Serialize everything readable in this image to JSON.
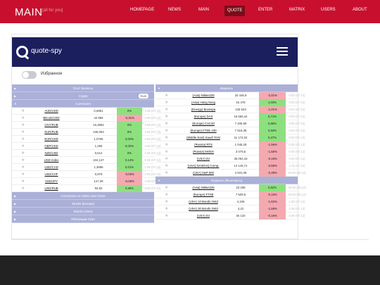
{
  "site": {
    "logo": "MAIN",
    "tagline": "[all for you]",
    "nav": [
      {
        "label": "HOMEPAGE",
        "active": false
      },
      {
        "label": "NEWS",
        "active": false
      },
      {
        "label": "MAIN",
        "active": false
      },
      {
        "label": "QUOTE",
        "active": true
      },
      {
        "label": "ENTER",
        "active": false
      },
      {
        "label": "MATRIX",
        "active": false
      },
      {
        "label": "USERS",
        "active": false
      },
      {
        "label": "ABOUT",
        "active": false
      }
    ]
  },
  "app": {
    "brand": "quote-spy",
    "favorites_label": "Избранное"
  },
  "left": {
    "sections_top": [
      {
        "title": "Спот Валюты",
        "arrow": "▶"
      },
      {
        "title": "Crypto",
        "arrow": "▶",
        "badge": "RUB"
      },
      {
        "title": "Currencies",
        "arrow": "▼"
      }
    ],
    "rows": [
      {
        "name": "AUD/USD",
        "value": "0,6951",
        "change": "0%",
        "dir": "up",
        "time": "1:06 (07.12)"
      },
      {
        "name": "Bitcoin/USD",
        "value": "42 865",
        "change": "-0,31%",
        "dir": "dn",
        "time": "1:06 (07.12)"
      },
      {
        "name": "CNY/RUB",
        "value": "16,3582",
        "change": "0%",
        "dir": "up",
        "time": "1:06 (07.12)"
      },
      {
        "name": "EUR/RUB",
        "value": "106,094",
        "change": "0%",
        "dir": "up",
        "time": "1:06 (07.12)"
      },
      {
        "name": "EUR/USD",
        "value": "1,0765",
        "change": "0,04%",
        "dir": "up",
        "time": "1:06 (07.12)"
      },
      {
        "name": "GBP/USD",
        "value": "1,256",
        "change": "0,02%",
        "dir": "up",
        "time": "1:06 (07.12)"
      },
      {
        "name": "NZD/USD",
        "value": "0,614",
        "change": "0%",
        "dir": "up",
        "time": "1:06 (07.12)"
      },
      {
        "name": "USD Index",
        "value": "104,137",
        "change": "0,14%",
        "dir": "up",
        "time": "0:06 (07.12)"
      },
      {
        "name": "USD/CAD",
        "value": "1,3595",
        "change": "0,01%",
        "dir": "up",
        "time": "1:06 (07.12)"
      },
      {
        "name": "USD/CHF",
        "value": "0,879",
        "change": "-0,05%",
        "dir": "dn",
        "time": "1:06 (07.12)"
      },
      {
        "name": "USD/JPY",
        "value": "147,29",
        "change": "-0,05%",
        "dir": "dn",
        "time": "1:06 (07.12)"
      },
      {
        "name": "USD/RUB",
        "value": "92,82",
        "change": "0,59%",
        "dir": "up",
        "time": "0:06 (07.12)"
      }
    ],
    "sections_bottom": [
      {
        "title": "Currencies ex-USDA and China",
        "arrow": "▶"
      },
      {
        "title": "Stocks (Europe)",
        "arrow": "▶"
      },
      {
        "title": "Stocks (USA)",
        "arrow": "▶"
      },
      {
        "title": "Облигации США",
        "arrow": "▶"
      }
    ]
  },
  "right": {
    "section1": {
      "title": "Индексы",
      "arrow": "▼"
    },
    "rows1": [
      {
        "name": "(Asia) Nikkei225",
        "value": "33 446,9",
        "change": "-2,01%",
        "dir": "dn",
        "time": "0:00 (07.12)"
      },
      {
        "name": "(Asia) Hang Seng",
        "value": "16 478",
        "change": "1,03%",
        "dir": "up",
        "time": "0:00 (07.12)"
      },
      {
        "name": "(Energy) Bovespa",
        "value": "125 623",
        "change": "-1,01%",
        "dir": "dn",
        "time": "0:24 (07.12)"
      },
      {
        "name": "(Europe) DAX",
        "value": "16 656,44",
        "change": "0,71%",
        "dir": "up",
        "time": "0:00 (07.12)"
      },
      {
        "name": "(Europe) CAC40",
        "value": "7 405,59",
        "change": "0,66%",
        "dir": "up",
        "time": "0:00 (07.12)"
      },
      {
        "name": "(Europe) FTSE 100",
        "value": "7 515,38",
        "change": "0,53%",
        "dir": "up",
        "time": "0:00 (07.12)"
      },
      {
        "name": "(Middle East) Saudi TASI",
        "value": "11 174,02",
        "change": "0,27%",
        "dir": "up",
        "time": "0:00 (07.12)"
      },
      {
        "name": "(Russia) RTS",
        "value": "1 045,28",
        "change": "-1,56%",
        "dir": "dn",
        "time": "0:00 (07.12)"
      },
      {
        "name": "(Russia) MOEX",
        "value": "3 079,5",
        "change": "-1,50%",
        "dir": "dn",
        "time": "0:00 (07.12)"
      },
      {
        "name": "(USA) DJ",
        "value": "36 054,43",
        "change": "-0,19%",
        "dir": "dn",
        "time": "0:00 (07.12)"
      },
      {
        "name": "(USA) NASDAQ Comp.",
        "value": "14 146,71",
        "change": "-0,58%",
        "dir": "dn",
        "time": "1:15 (07.12)"
      },
      {
        "name": "(USA) S&P 500",
        "value": "4 531,08",
        "change": "-0,39%",
        "dir": "dn",
        "time": "22:59 (06.12)"
      }
    ],
    "section2": {
      "title": "Индексы (Фьючерсы)",
      "arrow": "▼"
    },
    "rows2": [
      {
        "name": "(Asia) Nikkei225",
        "value": "33 269",
        "change": "0,52%",
        "dir": "up",
        "time": "22:59 (06.12)"
      },
      {
        "name": "(Europe) FTSE",
        "value": "7 509,5",
        "change": "-0,19%",
        "dir": "dn",
        "time": "22:59 (06.12)"
      },
      {
        "name": "(USA) 10 Bonds Yield",
        "value": "4,106",
        "change": "-1,62%",
        "dir": "dn",
        "time": "1:08 (07.12)"
      },
      {
        "name": "(USA) 30 Bonds Yield",
        "value": "4,22",
        "change": "-1,59%",
        "dir": "dn",
        "time": "1:08 (07.12)"
      },
      {
        "name": "(USA) DJ",
        "value": "36 120",
        "change": "-0,16%",
        "dir": "dn",
        "time": "0:06 (07.12)"
      }
    ]
  },
  "colors": {
    "topbar": "#c8102e",
    "appbar": "#1b1f5e",
    "section": "#aab0d8",
    "up": "#8ee07f",
    "down": "#f4a9b0",
    "footer": "#222222"
  }
}
